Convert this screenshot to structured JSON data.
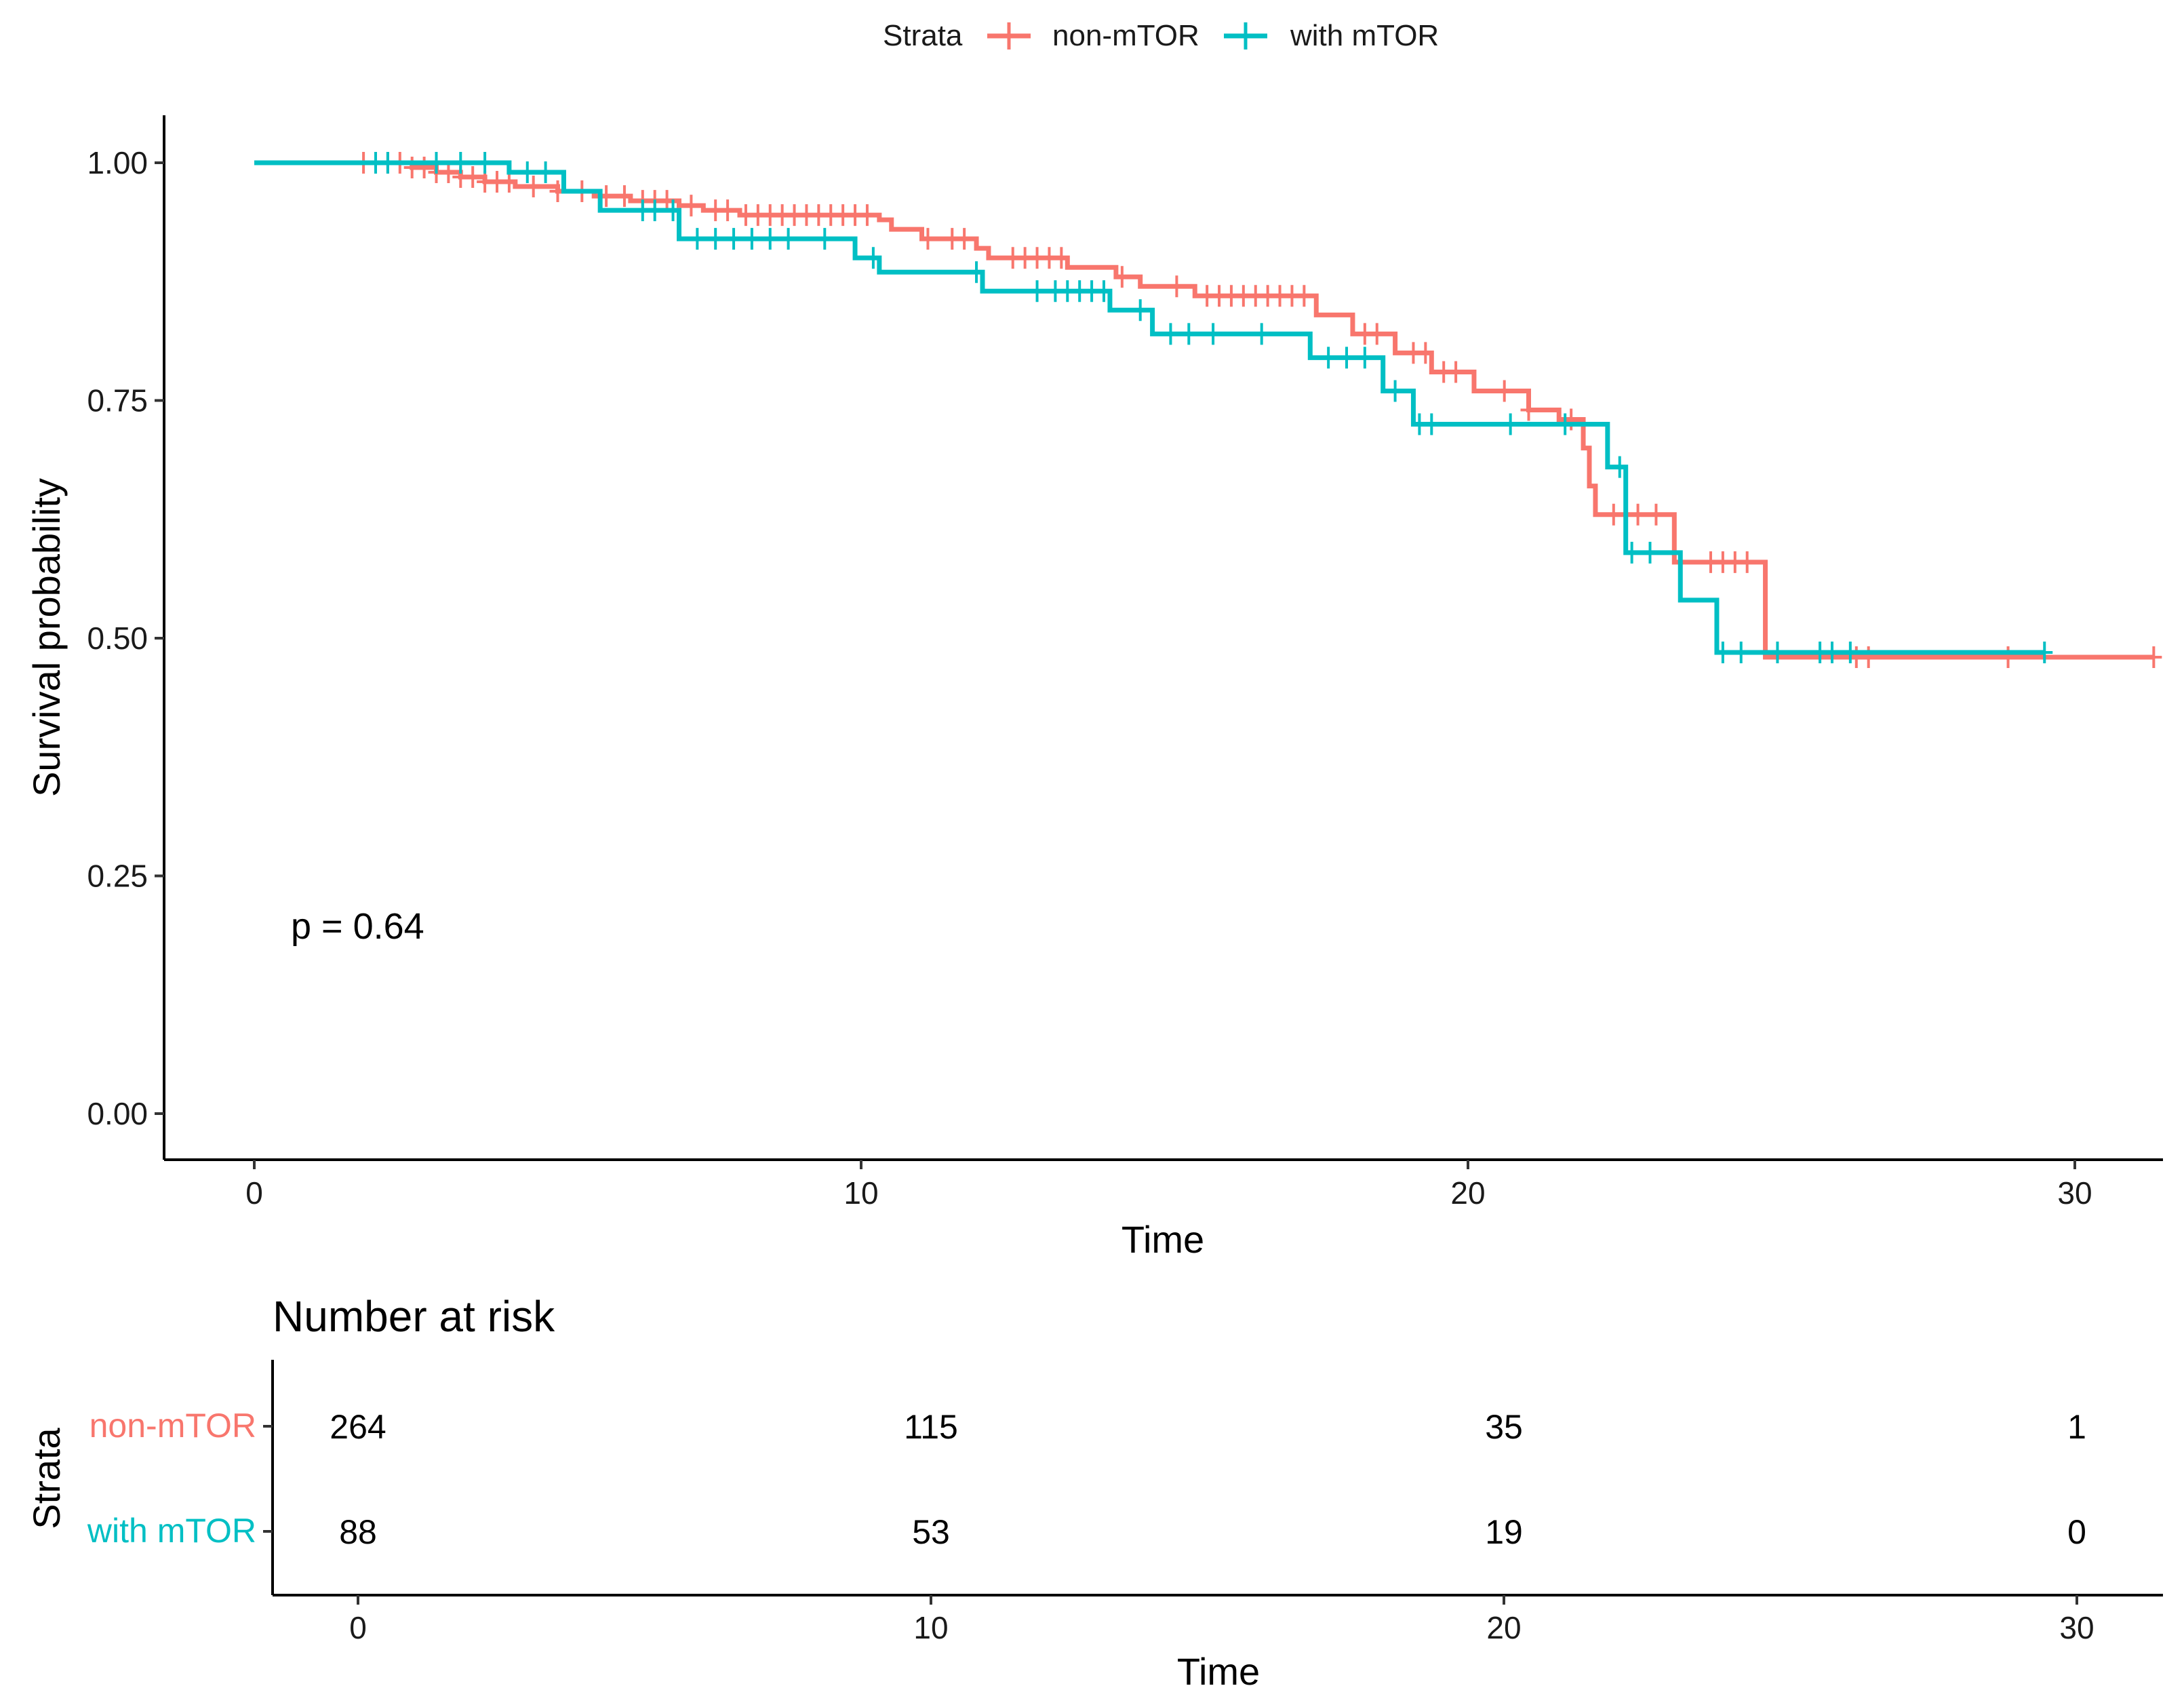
{
  "chart_data": [
    {
      "type": "line",
      "subtype": "kaplan-meier",
      "title": "",
      "legend": {
        "title": "Strata",
        "position": "top",
        "entries": [
          "non-mTOR",
          "with mTOR"
        ]
      },
      "xlabel": "Time",
      "ylabel": "Survival probability",
      "xlim": [
        -1.5,
        31.5
      ],
      "ylim": [
        -0.05,
        1.05
      ],
      "x_ticks": [
        0,
        10,
        20,
        30
      ],
      "x_tick_labels": [
        "0",
        "10",
        "20",
        "30"
      ],
      "y_ticks": [
        0,
        0.25,
        0.5,
        0.75,
        1.0
      ],
      "y_tick_labels": [
        "0.00",
        "0.25",
        "0.50",
        "0.75",
        "1.00"
      ],
      "grid": false,
      "annotation": "p = 0.64",
      "annotation_x": 0.6,
      "annotation_y": 0.2,
      "series": [
        {
          "name": "non-mTOR",
          "color": "#F8766D",
          "steps": [
            [
              0,
              1.0
            ],
            [
              2.6,
              0.995
            ],
            [
              3.0,
              0.99
            ],
            [
              3.4,
              0.985
            ],
            [
              3.8,
              0.98
            ],
            [
              4.3,
              0.975
            ],
            [
              5.0,
              0.97
            ],
            [
              5.6,
              0.965
            ],
            [
              6.2,
              0.96
            ],
            [
              7.0,
              0.955
            ],
            [
              7.4,
              0.95
            ],
            [
              8.0,
              0.945
            ],
            [
              10.3,
              0.94
            ],
            [
              10.5,
              0.93
            ],
            [
              11.0,
              0.92
            ],
            [
              11.9,
              0.91
            ],
            [
              12.1,
              0.9
            ],
            [
              13.4,
              0.89
            ],
            [
              14.2,
              0.88
            ],
            [
              14.6,
              0.87
            ],
            [
              15.5,
              0.86
            ],
            [
              17.5,
              0.84
            ],
            [
              18.1,
              0.82
            ],
            [
              18.8,
              0.8
            ],
            [
              19.4,
              0.78
            ],
            [
              20.1,
              0.76
            ],
            [
              21.0,
              0.74
            ],
            [
              21.5,
              0.73
            ],
            [
              21.9,
              0.7
            ],
            [
              22.0,
              0.66
            ],
            [
              22.1,
              0.63
            ],
            [
              23.4,
              0.58
            ],
            [
              24.9,
              0.48
            ],
            [
              31.3,
              0.48
            ]
          ],
          "censor_times": [
            1.8,
            2.0,
            2.2,
            2.4,
            2.6,
            2.8,
            3.0,
            3.2,
            3.4,
            3.6,
            3.8,
            4.0,
            4.2,
            4.6,
            5.0,
            5.4,
            5.8,
            6.1,
            6.4,
            6.6,
            6.8,
            7.2,
            7.6,
            7.8,
            8.1,
            8.3,
            8.5,
            8.7,
            8.9,
            9.1,
            9.3,
            9.5,
            9.7,
            9.9,
            10.1,
            11.1,
            11.5,
            11.7,
            12.5,
            12.7,
            12.9,
            13.1,
            13.3,
            14.3,
            15.2,
            15.7,
            15.9,
            16.1,
            16.3,
            16.5,
            16.7,
            16.9,
            17.1,
            17.3,
            18.3,
            18.5,
            19.1,
            19.3,
            19.6,
            19.8,
            20.6,
            21.0,
            21.7,
            22.4,
            22.6,
            22.8,
            23.1,
            24.0,
            24.2,
            24.4,
            24.6,
            26.4,
            26.6,
            28.9,
            31.3
          ]
        },
        {
          "name": "with mTOR",
          "color": "#00BFC4",
          "steps": [
            [
              0,
              1.0
            ],
            [
              4.2,
              0.99
            ],
            [
              5.1,
              0.97
            ],
            [
              5.7,
              0.95
            ],
            [
              7.0,
              0.92
            ],
            [
              9.9,
              0.9
            ],
            [
              10.3,
              0.885
            ],
            [
              12.0,
              0.865
            ],
            [
              14.1,
              0.845
            ],
            [
              14.8,
              0.82
            ],
            [
              17.4,
              0.795
            ],
            [
              18.6,
              0.76
            ],
            [
              19.1,
              0.725
            ],
            [
              22.3,
              0.68
            ],
            [
              22.6,
              0.59
            ],
            [
              23.5,
              0.54
            ],
            [
              24.1,
              0.485
            ],
            [
              29.5,
              0.485
            ]
          ],
          "censor_times": [
            2.0,
            2.2,
            3.0,
            3.4,
            3.8,
            4.5,
            4.8,
            6.4,
            6.6,
            6.9,
            7.3,
            7.6,
            7.9,
            8.2,
            8.5,
            8.8,
            9.4,
            10.2,
            11.9,
            12.9,
            13.2,
            13.4,
            13.6,
            13.8,
            14.0,
            14.6,
            15.1,
            15.4,
            15.8,
            16.6,
            17.7,
            18.0,
            18.3,
            18.8,
            19.2,
            19.4,
            20.7,
            21.6,
            22.5,
            22.7,
            23.0,
            24.2,
            24.5,
            25.1,
            25.8,
            26.0,
            26.3,
            29.5
          ]
        }
      ]
    },
    {
      "type": "table",
      "title": "Number at risk",
      "ylabel": "Strata",
      "xlabel": "Time",
      "xlim": [
        -1.5,
        31.5
      ],
      "x_ticks": [
        0,
        10,
        20,
        30
      ],
      "x_tick_labels": [
        "0",
        "10",
        "20",
        "30"
      ],
      "rows": [
        {
          "name": "non-mTOR",
          "color": "#F8766D",
          "values": [
            "264",
            "115",
            "35",
            "1"
          ]
        },
        {
          "name": "with mTOR",
          "color": "#00BFC4",
          "values": [
            "88",
            "53",
            "19",
            "0"
          ]
        }
      ]
    }
  ]
}
